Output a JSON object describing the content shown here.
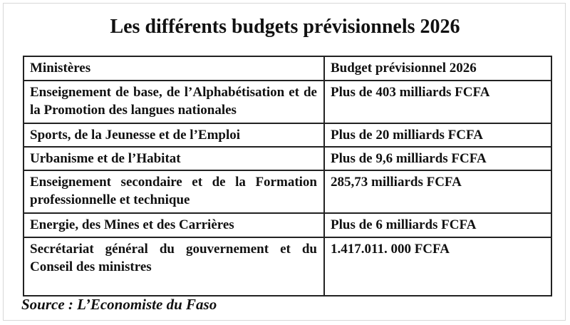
{
  "title": "Les différents budgets prévisionnels 2026",
  "table": {
    "header": [
      "Ministères",
      "Budget prévisionnel 2026"
    ],
    "rows": [
      [
        "Enseignement de base, de l’Alphabétisation et de la Promotion des langues nationales",
        "Plus de 403 milliards FCFA"
      ],
      [
        "Sports, de la Jeunesse et de l’Emploi",
        "Plus de 20 milliards FCFA"
      ],
      [
        "Urbanisme et de l’Habitat",
        "Plus de 9,6 milliards FCFA"
      ],
      [
        "Enseignement secondaire et de la Formation professionnelle et technique",
        "285,73 milliards FCFA"
      ],
      [
        "Energie, des Mines et des Carrières",
        "Plus de 6 milliards FCFA"
      ],
      [
        "Secrétariat général du gouvernement et du Conseil des ministres",
        "1.417.011. 000 FCFA"
      ]
    ]
  },
  "source": "Source : L’Economiste du Faso"
}
